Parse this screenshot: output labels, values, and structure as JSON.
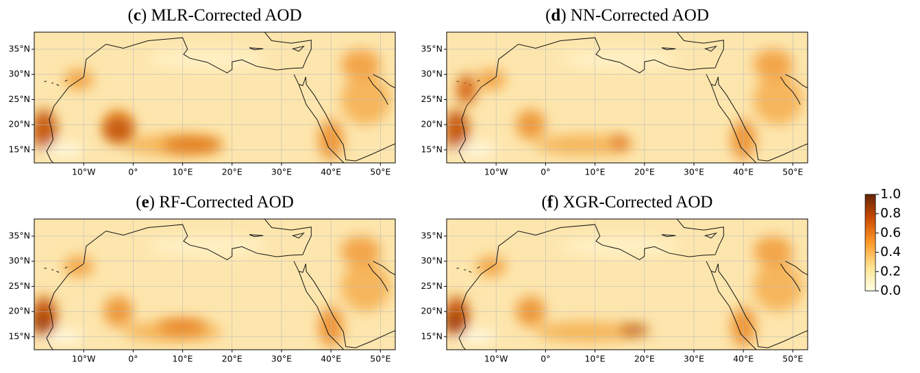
{
  "panels": [
    {
      "title_parts": [
        "(",
        "c",
        ") MLR-Corrected AOD"
      ]
    },
    {
      "title_parts": [
        "(",
        "d",
        ") NN-Corrected AOD"
      ]
    },
    {
      "title_parts": [
        "(",
        "e",
        ") RF-Corrected AOD"
      ]
    },
    {
      "title_parts": [
        "(",
        "f",
        ") XGR-Corrected AOD"
      ]
    }
  ],
  "axes": {
    "xlim": [
      -20,
      53
    ],
    "ylim": [
      12.4,
      38.4
    ],
    "xticks": [
      {
        "value": -10,
        "label": "10°W"
      },
      {
        "value": 0,
        "label": "0°"
      },
      {
        "value": 10,
        "label": "10°E"
      },
      {
        "value": 20,
        "label": "20°E"
      },
      {
        "value": 30,
        "label": "30°E"
      },
      {
        "value": 40,
        "label": "40°E"
      },
      {
        "value": 50,
        "label": "50°E"
      }
    ],
    "yticks": [
      {
        "value": 15,
        "label": "15°N"
      },
      {
        "value": 20,
        "label": "20°N"
      },
      {
        "value": 25,
        "label": "25°N"
      },
      {
        "value": 30,
        "label": "30°N"
      },
      {
        "value": 35,
        "label": "35°N"
      }
    ]
  },
  "colorbar": {
    "lim": [
      0,
      1
    ],
    "ticks": [
      {
        "value": 0,
        "label": "0.0"
      },
      0.2,
      0.4,
      0.6,
      0.8,
      {
        "value": 1,
        "label": "1.0"
      }
    ]
  }
}
